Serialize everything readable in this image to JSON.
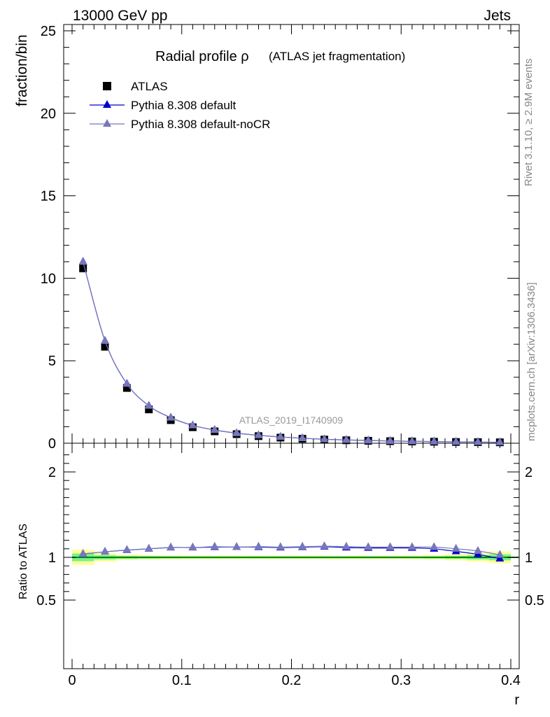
{
  "header": {
    "left": "13000 GeV pp",
    "right": "Jets"
  },
  "side_texts": {
    "rivet": "Rivet 3.1.10, ≥ 2.9M events",
    "mcplots": "mcplots.cern.ch [arXiv:1306.3436]"
  },
  "watermark": "ATLAS_2019_I1740909",
  "legend": [
    "ATLAS",
    "Pythia 8.308 default",
    "Pythia 8.308 default-noCR"
  ],
  "colors": {
    "data": "#000000",
    "default": "#0000cc",
    "noCR": "#7777bb",
    "band_inner": "#79f08f",
    "band_outer": "#ffff99",
    "ratio_line": "#008800"
  },
  "chart_data": [
    {
      "type": "scatter",
      "title": "Radial profile ρ",
      "subtitle": "(ATLAS jet fragmentation)",
      "xlabel": "r",
      "ylabel": "fraction/bin",
      "xlim": [
        0,
        0.4
      ],
      "ylim": [
        0,
        25.5
      ],
      "yticks": [
        0,
        5,
        10,
        15,
        20,
        25
      ],
      "x": [
        0.01,
        0.03,
        0.05,
        0.07,
        0.09,
        0.11,
        0.13,
        0.15,
        0.17,
        0.19,
        0.21,
        0.23,
        0.25,
        0.27,
        0.29,
        0.31,
        0.33,
        0.35,
        0.37,
        0.39
      ],
      "series": [
        {
          "name": "ATLAS",
          "values": [
            10.6,
            5.85,
            3.35,
            2.05,
            1.4,
            0.97,
            0.72,
            0.55,
            0.43,
            0.34,
            0.27,
            0.22,
            0.18,
            0.15,
            0.125,
            0.105,
            0.09,
            0.075,
            0.065,
            0.055
          ]
        },
        {
          "name": "Pythia 8.308 default",
          "values": [
            11.0,
            6.2,
            3.6,
            2.27,
            1.55,
            1.08,
            0.8,
            0.61,
            0.48,
            0.38,
            0.3,
            0.24,
            0.2,
            0.165,
            0.138,
            0.116,
            0.099,
            0.08,
            0.067,
            0.054
          ]
        },
        {
          "name": "Pythia 8.308 default-noCR",
          "values": [
            11.0,
            6.2,
            3.6,
            2.27,
            1.55,
            1.08,
            0.8,
            0.61,
            0.48,
            0.38,
            0.3,
            0.24,
            0.2,
            0.166,
            0.139,
            0.117,
            0.1,
            0.082,
            0.07,
            0.058
          ]
        }
      ]
    },
    {
      "type": "line",
      "ylabel": "Ratio to ATLAS",
      "xlabel": "r",
      "xlim": [
        0,
        0.4
      ],
      "ylim": [
        0.35,
        2.3
      ],
      "yticks": [
        0.5,
        1,
        2
      ],
      "xticks": [
        0,
        0.1,
        0.2,
        0.3,
        0.4
      ],
      "x": [
        0.01,
        0.03,
        0.05,
        0.07,
        0.09,
        0.11,
        0.13,
        0.15,
        0.17,
        0.19,
        0.21,
        0.23,
        0.25,
        0.27,
        0.29,
        0.31,
        0.33,
        0.35,
        0.37,
        0.39
      ],
      "bins": [
        0,
        0.02,
        0.04,
        0.06,
        0.08,
        0.1,
        0.12,
        0.14,
        0.16,
        0.18,
        0.2,
        0.22,
        0.24,
        0.26,
        0.28,
        0.3,
        0.32,
        0.34,
        0.36,
        0.38,
        0.4
      ],
      "series": [
        {
          "name": "Pythia 8.308 default",
          "values": [
            1.04,
            1.065,
            1.085,
            1.1,
            1.115,
            1.115,
            1.12,
            1.12,
            1.12,
            1.115,
            1.12,
            1.125,
            1.115,
            1.11,
            1.11,
            1.11,
            1.1,
            1.07,
            1.035,
            0.985
          ]
        },
        {
          "name": "Pythia 8.308 default-noCR",
          "values": [
            1.04,
            1.065,
            1.085,
            1.1,
            1.115,
            1.115,
            1.125,
            1.12,
            1.125,
            1.12,
            1.125,
            1.13,
            1.125,
            1.12,
            1.12,
            1.12,
            1.12,
            1.1,
            1.075,
            1.03
          ]
        }
      ],
      "band_inner": [
        0.045,
        0.025,
        0.018,
        0.015,
        0.013,
        0.012,
        0.012,
        0.012,
        0.012,
        0.012,
        0.012,
        0.012,
        0.012,
        0.012,
        0.012,
        0.012,
        0.014,
        0.018,
        0.025,
        0.035
      ],
      "band_outer": [
        0.09,
        0.05,
        0.03,
        0.025,
        0.022,
        0.02,
        0.02,
        0.02,
        0.02,
        0.02,
        0.02,
        0.02,
        0.02,
        0.02,
        0.02,
        0.022,
        0.025,
        0.035,
        0.05,
        0.07
      ]
    }
  ]
}
